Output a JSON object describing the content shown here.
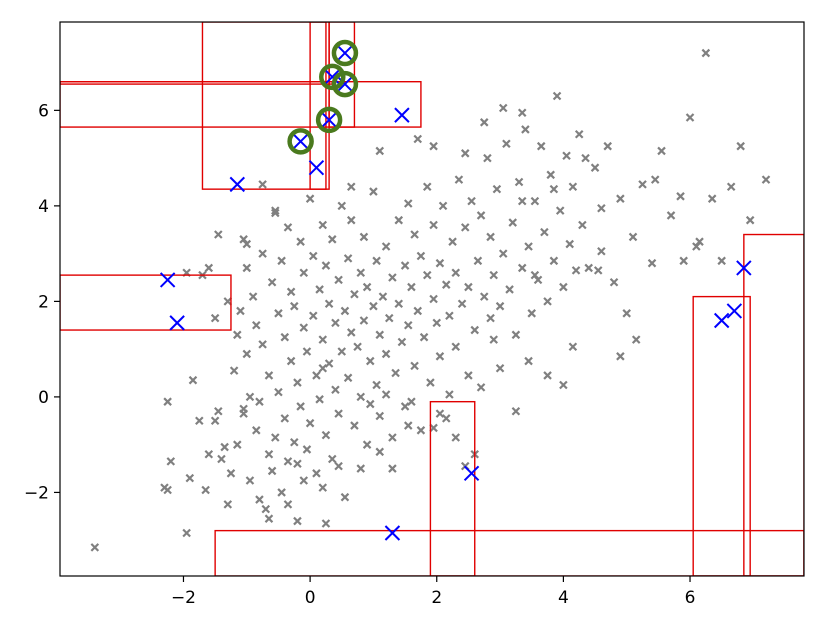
{
  "colors": {
    "background_points": "#808080",
    "outlier_markers": "#0000ff",
    "highlight_circles": "#4a7a1e",
    "boxes": "#e00000",
    "axes": "#000000"
  },
  "chart_data": {
    "type": "scatter",
    "title": "",
    "xlabel": "",
    "ylabel": "",
    "xlim": [
      -3.95,
      7.8
    ],
    "ylim": [
      -3.75,
      7.85
    ],
    "xticks": [
      -2,
      0,
      2,
      4,
      6
    ],
    "xtick_labels": [
      "−2",
      "0",
      "2",
      "4",
      "6"
    ],
    "yticks": [
      -2,
      0,
      2,
      4,
      6
    ],
    "ytick_labels": [
      "−2",
      "0",
      "2",
      "4",
      "6"
    ],
    "grid": false,
    "series": [
      {
        "marker": "x-small",
        "color": "#808080",
        "points": [
          [
            -3.4,
            -3.15
          ],
          [
            -2.3,
            -1.9
          ],
          [
            -2.25,
            -1.95
          ],
          [
            -2.25,
            -0.1
          ],
          [
            -1.95,
            2.6
          ],
          [
            -1.9,
            -1.7
          ],
          [
            -1.95,
            -2.85
          ],
          [
            -1.75,
            -0.5
          ],
          [
            -1.85,
            0.35
          ],
          [
            -1.7,
            2.55
          ],
          [
            -1.6,
            -1.2
          ],
          [
            -1.5,
            1.65
          ],
          [
            -1.5,
            -0.5
          ],
          [
            -1.45,
            -0.3
          ],
          [
            -1.35,
            -1.05
          ],
          [
            -1.3,
            2.0
          ],
          [
            -1.3,
            -2.25
          ],
          [
            -1.25,
            -1.6
          ],
          [
            -1.2,
            0.55
          ],
          [
            -1.15,
            -1.0
          ],
          [
            -1.15,
            1.3
          ],
          [
            -1.1,
            1.8
          ],
          [
            -1.05,
            -0.25
          ],
          [
            -1.0,
            3.2
          ],
          [
            -1.0,
            2.7
          ],
          [
            -1.0,
            0.9
          ],
          [
            -0.95,
            -1.75
          ],
          [
            -0.9,
            2.1
          ],
          [
            -0.85,
            -0.7
          ],
          [
            -0.85,
            1.5
          ],
          [
            -0.8,
            -2.15
          ],
          [
            -0.8,
            -0.1
          ],
          [
            -0.75,
            3.0
          ],
          [
            -0.75,
            1.1
          ],
          [
            -0.7,
            -2.35
          ],
          [
            -0.65,
            -1.2
          ],
          [
            -0.65,
            0.45
          ],
          [
            -0.6,
            2.4
          ],
          [
            -0.6,
            -1.55
          ],
          [
            -0.55,
            3.9
          ],
          [
            -0.55,
            -0.85
          ],
          [
            -0.5,
            1.75
          ],
          [
            -0.5,
            0.1
          ],
          [
            -0.45,
            -2.0
          ],
          [
            -0.45,
            2.85
          ],
          [
            -0.4,
            -0.45
          ],
          [
            -0.4,
            1.25
          ],
          [
            -0.35,
            -1.35
          ],
          [
            -0.35,
            3.55
          ],
          [
            -0.3,
            0.75
          ],
          [
            -0.3,
            2.2
          ],
          [
            -0.25,
            -0.95
          ],
          [
            -0.25,
            1.9
          ],
          [
            -0.2,
            -2.6
          ],
          [
            -0.2,
            0.3
          ],
          [
            -0.15,
            3.25
          ],
          [
            -0.15,
            -0.2
          ],
          [
            -0.1,
            1.45
          ],
          [
            -0.1,
            2.6
          ],
          [
            -0.05,
            -1.1
          ],
          [
            -0.05,
            0.95
          ],
          [
            0.0,
            4.15
          ],
          [
            0.0,
            -0.55
          ],
          [
            0.05,
            1.7
          ],
          [
            0.05,
            2.95
          ],
          [
            0.1,
            -1.6
          ],
          [
            0.1,
            0.45
          ],
          [
            0.15,
            2.25
          ],
          [
            0.15,
            -0.05
          ],
          [
            0.2,
            3.6
          ],
          [
            0.2,
            1.2
          ],
          [
            0.25,
            -0.8
          ],
          [
            0.25,
            2.75
          ],
          [
            0.3,
            0.7
          ],
          [
            0.3,
            1.95
          ],
          [
            0.35,
            -1.3
          ],
          [
            0.35,
            3.3
          ],
          [
            0.4,
            0.15
          ],
          [
            0.4,
            1.55
          ],
          [
            0.45,
            2.45
          ],
          [
            0.45,
            -0.35
          ],
          [
            0.5,
            4.0
          ],
          [
            0.5,
            0.95
          ],
          [
            0.55,
            1.8
          ],
          [
            0.55,
            -2.1
          ],
          [
            0.6,
            2.9
          ],
          [
            0.6,
            0.4
          ],
          [
            0.65,
            1.35
          ],
          [
            0.65,
            3.7
          ],
          [
            0.7,
            -0.6
          ],
          [
            0.7,
            2.15
          ],
          [
            0.75,
            1.05
          ],
          [
            0.8,
            2.6
          ],
          [
            0.8,
            0.0
          ],
          [
            0.85,
            1.6
          ],
          [
            0.85,
            3.35
          ],
          [
            0.9,
            -1.0
          ],
          [
            0.9,
            2.3
          ],
          [
            0.95,
            0.75
          ],
          [
            1.0,
            1.9
          ],
          [
            1.0,
            4.3
          ],
          [
            1.05,
            0.25
          ],
          [
            1.05,
            2.85
          ],
          [
            1.1,
            1.3
          ],
          [
            1.1,
            -0.4
          ],
          [
            1.15,
            2.1
          ],
          [
            1.2,
            3.15
          ],
          [
            1.2,
            0.9
          ],
          [
            1.25,
            1.65
          ],
          [
            1.3,
            -0.85
          ],
          [
            1.3,
            2.5
          ],
          [
            1.35,
            0.5
          ],
          [
            1.4,
            3.7
          ],
          [
            1.4,
            1.95
          ],
          [
            1.45,
            1.15
          ],
          [
            1.5,
            2.75
          ],
          [
            1.5,
            -0.2
          ],
          [
            1.55,
            4.05
          ],
          [
            1.55,
            1.5
          ],
          [
            1.6,
            2.3
          ],
          [
            1.65,
            0.65
          ],
          [
            1.65,
            3.4
          ],
          [
            1.7,
            1.8
          ],
          [
            1.75,
            -0.7
          ],
          [
            1.75,
            2.95
          ],
          [
            1.8,
            1.25
          ],
          [
            1.85,
            2.55
          ],
          [
            1.85,
            4.4
          ],
          [
            1.9,
            0.3
          ],
          [
            1.95,
            2.05
          ],
          [
            1.95,
            3.6
          ],
          [
            2.0,
            1.55
          ],
          [
            2.05,
            2.8
          ],
          [
            2.05,
            0.85
          ],
          [
            2.1,
            4.0
          ],
          [
            2.15,
            2.35
          ],
          [
            2.15,
            -0.45
          ],
          [
            2.2,
            1.7
          ],
          [
            2.25,
            3.25
          ],
          [
            2.3,
            2.6
          ],
          [
            2.3,
            1.05
          ],
          [
            2.35,
            4.55
          ],
          [
            2.4,
            1.95
          ],
          [
            2.45,
            3.55
          ],
          [
            2.5,
            2.3
          ],
          [
            2.5,
            0.45
          ],
          [
            2.55,
            4.1
          ],
          [
            2.6,
            1.4
          ],
          [
            2.65,
            2.85
          ],
          [
            2.7,
            3.8
          ],
          [
            2.75,
            2.1
          ],
          [
            2.8,
            5.0
          ],
          [
            2.85,
            1.65
          ],
          [
            2.85,
            3.35
          ],
          [
            2.9,
            2.55
          ],
          [
            2.95,
            4.35
          ],
          [
            3.0,
            1.9
          ],
          [
            3.05,
            3.0
          ],
          [
            3.1,
            5.3
          ],
          [
            3.15,
            2.25
          ],
          [
            3.2,
            3.65
          ],
          [
            3.25,
            1.3
          ],
          [
            3.3,
            4.5
          ],
          [
            3.35,
            2.7
          ],
          [
            3.4,
            5.6
          ],
          [
            3.45,
            3.15
          ],
          [
            3.5,
            1.75
          ],
          [
            3.55,
            4.1
          ],
          [
            3.6,
            2.45
          ],
          [
            3.65,
            5.25
          ],
          [
            3.7,
            3.45
          ],
          [
            3.75,
            2.0
          ],
          [
            3.8,
            4.65
          ],
          [
            3.85,
            2.85
          ],
          [
            3.9,
            6.3
          ],
          [
            3.95,
            3.9
          ],
          [
            4.0,
            2.3
          ],
          [
            4.05,
            5.05
          ],
          [
            4.1,
            3.2
          ],
          [
            4.15,
            4.4
          ],
          [
            4.2,
            2.65
          ],
          [
            4.25,
            5.5
          ],
          [
            4.3,
            3.6
          ],
          [
            4.4,
            2.7
          ],
          [
            4.5,
            4.8
          ],
          [
            4.6,
            3.05
          ],
          [
            4.7,
            5.25
          ],
          [
            4.8,
            2.4
          ],
          [
            4.9,
            4.15
          ],
          [
            5.0,
            1.75
          ],
          [
            5.1,
            3.35
          ],
          [
            5.25,
            4.45
          ],
          [
            5.4,
            2.8
          ],
          [
            5.55,
            5.15
          ],
          [
            5.7,
            3.8
          ],
          [
            5.85,
            4.2
          ],
          [
            6.0,
            5.85
          ],
          [
            6.15,
            3.25
          ],
          [
            6.25,
            7.2
          ],
          [
            6.35,
            4.15
          ],
          [
            6.5,
            2.85
          ],
          [
            6.65,
            4.4
          ],
          [
            6.8,
            5.25
          ],
          [
            6.95,
            3.7
          ],
          [
            7.2,
            4.55
          ],
          [
            4.6,
            3.95
          ],
          [
            3.05,
            6.05
          ],
          [
            3.35,
            5.95
          ],
          [
            2.75,
            5.75
          ],
          [
            1.7,
            5.4
          ],
          [
            1.1,
            5.15
          ],
          [
            0.65,
            4.4
          ],
          [
            -0.75,
            4.45
          ],
          [
            -0.55,
            3.85
          ],
          [
            -1.05,
            3.3
          ],
          [
            -1.45,
            3.4
          ],
          [
            -1.6,
            2.7
          ],
          [
            -1.05,
            -0.35
          ],
          [
            -0.95,
            0.0
          ],
          [
            -0.65,
            -2.55
          ],
          [
            -0.35,
            -2.25
          ],
          [
            0.25,
            -2.65
          ],
          [
            0.8,
            -1.5
          ],
          [
            1.3,
            -1.5
          ],
          [
            1.55,
            -0.6
          ],
          [
            1.95,
            -0.65
          ],
          [
            2.3,
            -0.85
          ],
          [
            2.45,
            -1.45
          ],
          [
            2.6,
            -1.2
          ],
          [
            2.9,
            1.2
          ],
          [
            3.0,
            0.6
          ],
          [
            3.45,
            0.75
          ],
          [
            3.75,
            0.45
          ],
          [
            4.15,
            1.05
          ],
          [
            4.0,
            0.25
          ],
          [
            3.25,
            -0.3
          ],
          [
            2.7,
            0.2
          ],
          [
            2.2,
            0.05
          ],
          [
            1.6,
            -0.1
          ],
          [
            0.2,
            -1.9
          ],
          [
            -0.2,
            -1.4
          ],
          [
            0.95,
            -0.15
          ],
          [
            5.9,
            2.85
          ],
          [
            6.1,
            3.15
          ],
          [
            5.15,
            1.2
          ],
          [
            4.9,
            0.85
          ],
          [
            3.55,
            2.55
          ],
          [
            4.55,
            2.65
          ],
          [
            5.45,
            4.55
          ],
          [
            3.35,
            4.1
          ],
          [
            3.85,
            4.35
          ],
          [
            4.35,
            5.0
          ],
          [
            2.45,
            5.1
          ],
          [
            1.95,
            5.25
          ],
          [
            -2.2,
            -1.35
          ],
          [
            -1.65,
            -1.95
          ],
          [
            -1.4,
            -1.3
          ],
          [
            -0.1,
            -1.75
          ],
          [
            0.45,
            -1.45
          ],
          [
            1.1,
            -1.15
          ],
          [
            2.05,
            -0.35
          ],
          [
            0.2,
            0.6
          ],
          [
            1.2,
            0.05
          ]
        ]
      },
      {
        "marker": "x-large",
        "color": "#0000ff",
        "points": [
          [
            0.55,
            7.2
          ],
          [
            0.35,
            6.7
          ],
          [
            0.55,
            6.55
          ],
          [
            0.3,
            5.8
          ],
          [
            1.45,
            5.9
          ],
          [
            -0.15,
            5.35
          ],
          [
            0.1,
            4.8
          ],
          [
            -1.15,
            4.45
          ],
          [
            -2.25,
            2.45
          ],
          [
            -2.1,
            1.55
          ],
          [
            6.5,
            1.6
          ],
          [
            6.7,
            1.8
          ],
          [
            6.85,
            2.7
          ],
          [
            2.55,
            -1.6
          ],
          [
            1.3,
            -2.85
          ]
        ]
      },
      {
        "marker": "circle",
        "color": "#4a7a1e",
        "points": [
          [
            0.55,
            7.2
          ],
          [
            0.35,
            6.7
          ],
          [
            0.55,
            6.55
          ],
          [
            0.3,
            5.8
          ],
          [
            -0.15,
            5.35
          ]
        ]
      }
    ],
    "rectangles": [
      {
        "x0": -1.7,
        "x1": 0.25,
        "y0": 4.35,
        "y1": 7.85
      },
      {
        "x0": 0.0,
        "x1": 0.3,
        "y0": 4.35,
        "y1": 7.85
      },
      {
        "x0": 0.3,
        "x1": 0.7,
        "y0": 5.65,
        "y1": 7.85
      },
      {
        "x0": -3.95,
        "x1": 1.75,
        "y0": 5.65,
        "y1": 6.6
      },
      {
        "x0": -3.95,
        "x1": 0.35,
        "y0": 6.55,
        "y1": 6.6
      },
      {
        "x0": -3.95,
        "x1": -1.25,
        "y0": 1.4,
        "y1": 2.55
      },
      {
        "x0": -1.5,
        "x1": 7.8,
        "y0": -3.75,
        "y1": -2.8
      },
      {
        "x0": 1.9,
        "x1": 2.6,
        "y0": -3.75,
        "y1": -0.1
      },
      {
        "x0": 6.05,
        "x1": 6.95,
        "y0": -3.75,
        "y1": 2.1
      },
      {
        "x0": 6.85,
        "x1": 7.8,
        "y0": -3.75,
        "y1": 3.4
      }
    ]
  }
}
